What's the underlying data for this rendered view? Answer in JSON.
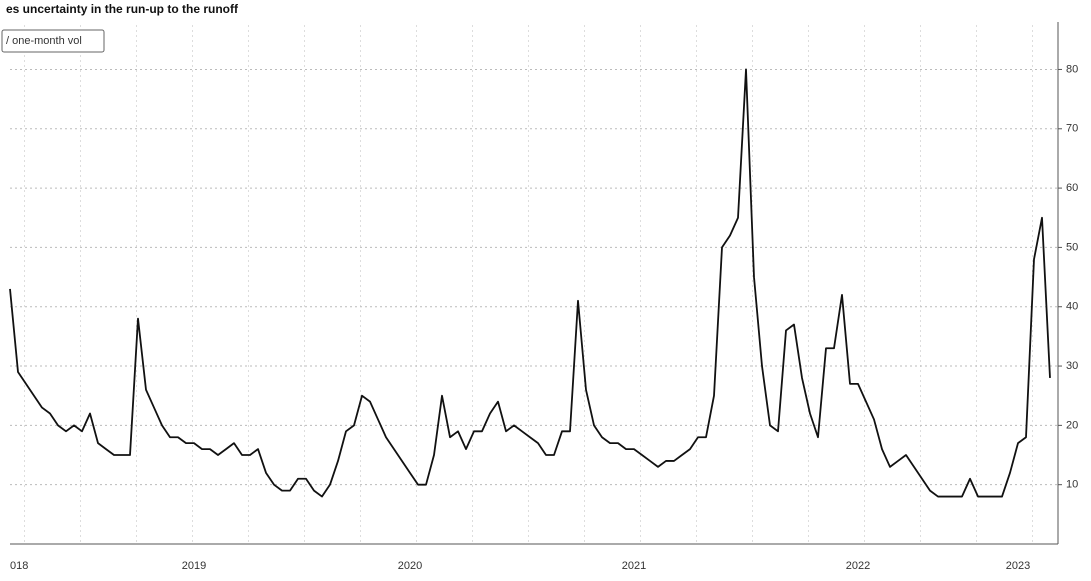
{
  "chart_data": {
    "type": "line",
    "title": "es uncertainty in the run-up to the runoff",
    "categories": [
      "018",
      null,
      null,
      null,
      null,
      null,
      null,
      null,
      null,
      null,
      null,
      null,
      null,
      null,
      null,
      null,
      null,
      null,
      null,
      null,
      null,
      null,
      null,
      "2019",
      null,
      null,
      null,
      null,
      null,
      null,
      null,
      null,
      null,
      null,
      null,
      null,
      null,
      null,
      null,
      null,
      null,
      null,
      null,
      null,
      null,
      null,
      null,
      null,
      null,
      null,
      "2020",
      null,
      null,
      null,
      null,
      null,
      null,
      null,
      null,
      null,
      null,
      null,
      null,
      null,
      null,
      null,
      null,
      null,
      null,
      null,
      null,
      null,
      null,
      null,
      null,
      null,
      null,
      null,
      "2021",
      null,
      null,
      null,
      null,
      null,
      null,
      null,
      null,
      null,
      null,
      null,
      null,
      null,
      null,
      null,
      null,
      null,
      null,
      null,
      null,
      null,
      null,
      null,
      null,
      null,
      null,
      null,
      "2022",
      null,
      null,
      null,
      null,
      null,
      null,
      null,
      null,
      null,
      null,
      null,
      null,
      null,
      null,
      null,
      null,
      null,
      null,
      null,
      "2023",
      null,
      null,
      null,
      null
    ],
    "series": [
      {
        "name": "/ one-month vol",
        "color": "#111111",
        "values": [
          43,
          29,
          27,
          25,
          23,
          22,
          20,
          19,
          20,
          19,
          22,
          17,
          16,
          15,
          15,
          15,
          38,
          26,
          23,
          20,
          18,
          18,
          17,
          17,
          16,
          16,
          15,
          16,
          17,
          15,
          15,
          16,
          12,
          10,
          9,
          9,
          11,
          11,
          9,
          8,
          10,
          14,
          19,
          20,
          25,
          24,
          21,
          18,
          16,
          14,
          12,
          10,
          10,
          15,
          25,
          18,
          19,
          16,
          19,
          19,
          22,
          24,
          19,
          20,
          19,
          18,
          17,
          15,
          15,
          19,
          19,
          41,
          26,
          20,
          18,
          17,
          17,
          16,
          16,
          15,
          14,
          13,
          14,
          14,
          15,
          16,
          18,
          18,
          25,
          50,
          52,
          55,
          80,
          45,
          30,
          20,
          19,
          36,
          37,
          28,
          22,
          18,
          33,
          33,
          42,
          27,
          27,
          24,
          21,
          16,
          13,
          14,
          15,
          13,
          11,
          9,
          8,
          8,
          8,
          8,
          11,
          8,
          8,
          8,
          8,
          12,
          17,
          18,
          48,
          55,
          28
        ]
      }
    ],
    "ylim": [
      0,
      88
    ],
    "yticks": [
      10,
      20,
      30,
      40,
      50,
      60,
      70,
      80
    ],
    "grid": true
  }
}
